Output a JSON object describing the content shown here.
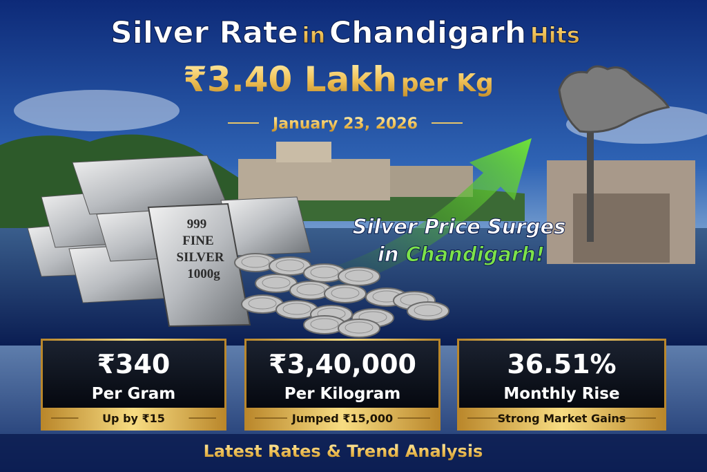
{
  "headline": {
    "line1": [
      "Silver Rate",
      "in",
      "Chandigarh",
      "Hits"
    ],
    "line2": [
      "₹3.40 Lakh",
      "per Kg"
    ]
  },
  "date": "January 23, 2026",
  "bar_stamp": [
    "999",
    "FINE",
    "SILVER",
    "1000g"
  ],
  "callout": {
    "line1": "Silver Price Surges",
    "line2": [
      "in",
      "Chandigarh!"
    ]
  },
  "cards": [
    {
      "value": "₹340",
      "label": "Per Gram",
      "note": "Up by ₹15"
    },
    {
      "value": "₹3,40,000",
      "label": "Per Kilogram",
      "note": "Jumped ₹15,000"
    },
    {
      "value": "36.51%",
      "label": "Monthly Rise",
      "note": "Strong Market Gains"
    }
  ],
  "footer": "Latest Rates & Trend Analysis"
}
